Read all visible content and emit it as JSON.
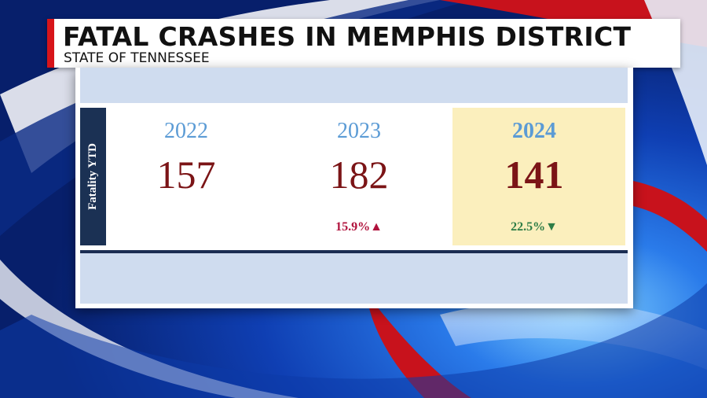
{
  "header": {
    "title": "FATAL CRASHES IN MEMPHIS DISTRICT",
    "subtitle": "STATE OF TENNESSEE"
  },
  "table": {
    "row_label": "Fatality YTD",
    "columns": [
      {
        "year": "2022",
        "value": "157",
        "change": ""
      },
      {
        "year": "2023",
        "value": "182",
        "change": "15.9%",
        "change_arrow": "▲",
        "direction": "up"
      },
      {
        "year": "2024",
        "value": "141",
        "change": "22.5%",
        "change_arrow": "▼",
        "direction": "down",
        "highlighted": true
      }
    ]
  },
  "colors": {
    "accent_red": "#d7141a",
    "year_blue": "#5b9bd5",
    "value_maroon": "#7b1416",
    "increase": "#b0123c",
    "decrease": "#2e7d46",
    "highlight": "#fbefbd",
    "band": "#cfdcef",
    "label_navy": "#1b3154"
  }
}
